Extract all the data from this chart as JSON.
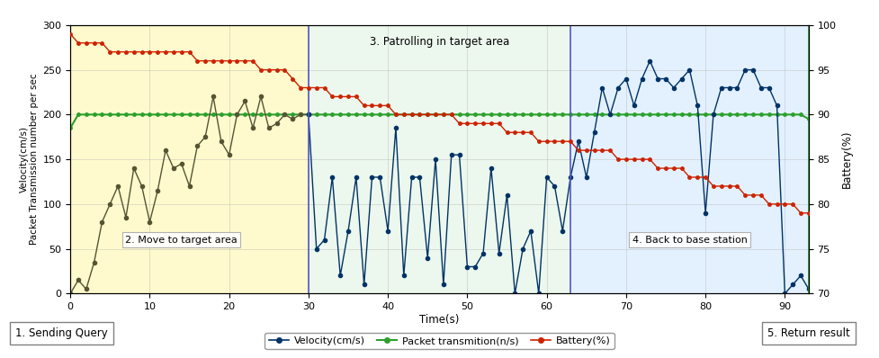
{
  "xlabel": "Time(s)",
  "ylabel_left": "Velocity(cm/s)\nPacket Transmission number per sec",
  "ylabel_right": "Battery(%)",
  "xlim": [
    0,
    93
  ],
  "ylim_left": [
    0,
    300
  ],
  "ylim_right": [
    70,
    100
  ],
  "xticks": [
    0,
    10,
    20,
    30,
    40,
    50,
    60,
    70,
    80,
    90
  ],
  "yticks_left": [
    0,
    50,
    100,
    150,
    200,
    250,
    300
  ],
  "yticks_right": [
    70,
    75,
    80,
    85,
    90,
    95,
    100
  ],
  "velocity_x_zone1": [
    0,
    1,
    2,
    3,
    4,
    5,
    6,
    7,
    8,
    9,
    10,
    11,
    12,
    13,
    14,
    15,
    16,
    17,
    18,
    19,
    20,
    21,
    22,
    23,
    24,
    25,
    26,
    27,
    28,
    29,
    30
  ],
  "velocity_y_zone1": [
    0,
    15,
    5,
    35,
    80,
    100,
    120,
    85,
    140,
    120,
    80,
    115,
    160,
    140,
    145,
    120,
    165,
    175,
    220,
    170,
    155,
    200,
    215,
    185,
    220,
    185,
    190,
    200,
    195,
    200,
    200
  ],
  "velocity_x_zone234": [
    30,
    31,
    32,
    33,
    34,
    35,
    36,
    37,
    38,
    39,
    40,
    41,
    42,
    43,
    44,
    45,
    46,
    47,
    48,
    49,
    50,
    51,
    52,
    53,
    54,
    55,
    56,
    57,
    58,
    59,
    60,
    61,
    62,
    63,
    64,
    65,
    66,
    67,
    68,
    69,
    70,
    71,
    72,
    73,
    74,
    75,
    76,
    77,
    78,
    79,
    80,
    81,
    82,
    83,
    84,
    85,
    86,
    87,
    88,
    89,
    90,
    91,
    92,
    93
  ],
  "velocity_y_zone234": [
    200,
    50,
    60,
    130,
    20,
    70,
    130,
    10,
    130,
    130,
    70,
    185,
    20,
    130,
    130,
    40,
    150,
    10,
    155,
    155,
    30,
    30,
    45,
    140,
    45,
    110,
    0,
    50,
    70,
    0,
    130,
    120,
    70,
    130,
    170,
    130,
    180,
    230,
    200,
    230,
    240,
    210,
    240,
    260,
    240,
    240,
    230,
    240,
    250,
    210,
    90,
    200,
    230,
    230,
    230,
    250,
    250,
    230,
    230,
    210,
    0,
    10,
    20,
    5
  ],
  "packet_x": [
    0,
    1,
    2,
    3,
    4,
    5,
    6,
    7,
    8,
    9,
    10,
    11,
    12,
    13,
    14,
    15,
    16,
    17,
    18,
    19,
    20,
    21,
    22,
    23,
    24,
    25,
    26,
    27,
    28,
    29,
    30,
    31,
    32,
    33,
    34,
    35,
    36,
    37,
    38,
    39,
    40,
    41,
    42,
    43,
    44,
    45,
    46,
    47,
    48,
    49,
    50,
    51,
    52,
    53,
    54,
    55,
    56,
    57,
    58,
    59,
    60,
    61,
    62,
    63,
    64,
    65,
    66,
    67,
    68,
    69,
    70,
    71,
    72,
    73,
    74,
    75,
    76,
    77,
    78,
    79,
    80,
    81,
    82,
    83,
    84,
    85,
    86,
    87,
    88,
    89,
    90,
    91,
    92,
    93
  ],
  "packet_y": [
    185,
    200,
    200,
    200,
    200,
    200,
    200,
    200,
    200,
    200,
    200,
    200,
    200,
    200,
    200,
    200,
    200,
    200,
    200,
    200,
    200,
    200,
    200,
    200,
    200,
    200,
    200,
    200,
    200,
    200,
    200,
    200,
    200,
    200,
    200,
    200,
    200,
    200,
    200,
    200,
    200,
    200,
    200,
    200,
    200,
    200,
    200,
    200,
    200,
    200,
    200,
    200,
    200,
    200,
    200,
    200,
    200,
    200,
    200,
    200,
    200,
    200,
    200,
    200,
    200,
    200,
    200,
    200,
    200,
    200,
    200,
    200,
    200,
    200,
    200,
    200,
    200,
    200,
    200,
    200,
    200,
    200,
    200,
    200,
    200,
    200,
    200,
    200,
    200,
    200,
    200,
    200,
    200,
    195
  ],
  "battery_x": [
    0,
    1,
    2,
    3,
    4,
    5,
    6,
    7,
    8,
    9,
    10,
    11,
    12,
    13,
    14,
    15,
    16,
    17,
    18,
    19,
    20,
    21,
    22,
    23,
    24,
    25,
    26,
    27,
    28,
    29,
    30,
    31,
    32,
    33,
    34,
    35,
    36,
    37,
    38,
    39,
    40,
    41,
    42,
    43,
    44,
    45,
    46,
    47,
    48,
    49,
    50,
    51,
    52,
    53,
    54,
    55,
    56,
    57,
    58,
    59,
    60,
    61,
    62,
    63,
    64,
    65,
    66,
    67,
    68,
    69,
    70,
    71,
    72,
    73,
    74,
    75,
    76,
    77,
    78,
    79,
    80,
    81,
    82,
    83,
    84,
    85,
    86,
    87,
    88,
    89,
    90,
    91,
    92,
    93
  ],
  "battery_y": [
    99,
    98,
    98,
    98,
    98,
    97,
    97,
    97,
    97,
    97,
    97,
    97,
    97,
    97,
    97,
    97,
    96,
    96,
    96,
    96,
    96,
    96,
    96,
    96,
    95,
    95,
    95,
    95,
    94,
    93,
    93,
    93,
    93,
    92,
    92,
    92,
    92,
    91,
    91,
    91,
    91,
    90,
    90,
    90,
    90,
    90,
    90,
    90,
    90,
    89,
    89,
    89,
    89,
    89,
    89,
    88,
    88,
    88,
    88,
    87,
    87,
    87,
    87,
    87,
    86,
    86,
    86,
    86,
    86,
    85,
    85,
    85,
    85,
    85,
    84,
    84,
    84,
    84,
    83,
    83,
    83,
    82,
    82,
    82,
    82,
    81,
    81,
    81,
    80,
    80,
    80,
    80,
    79,
    79
  ],
  "zone2_xstart": 0,
  "zone2_xend": 30,
  "zone3_xstart": 30,
  "zone3_xend": 63,
  "zone4_xstart": 63,
  "zone4_xend": 93,
  "velocity_color_zone1": "#555533",
  "velocity_color_zone234": "#003366",
  "packet_color": "#2ca02c",
  "battery_color": "#cc2200",
  "zone2_color": "#fffacd",
  "zone3_color": "#e8f5e9",
  "zone4_color": "#ddeeff",
  "bg_color": "#ffffff",
  "grid_color": "#bbbbbb",
  "legend_velocity": "Velocity(cm/s)",
  "legend_packet": "Packet transmition(n/s)",
  "legend_battery": "Battery(%)",
  "label2": "2. Move to target area",
  "label3": "3. Patrolling in target area",
  "label4": "4. Back to base station",
  "label1": "1. Sending Query",
  "label5": "5. Return result"
}
